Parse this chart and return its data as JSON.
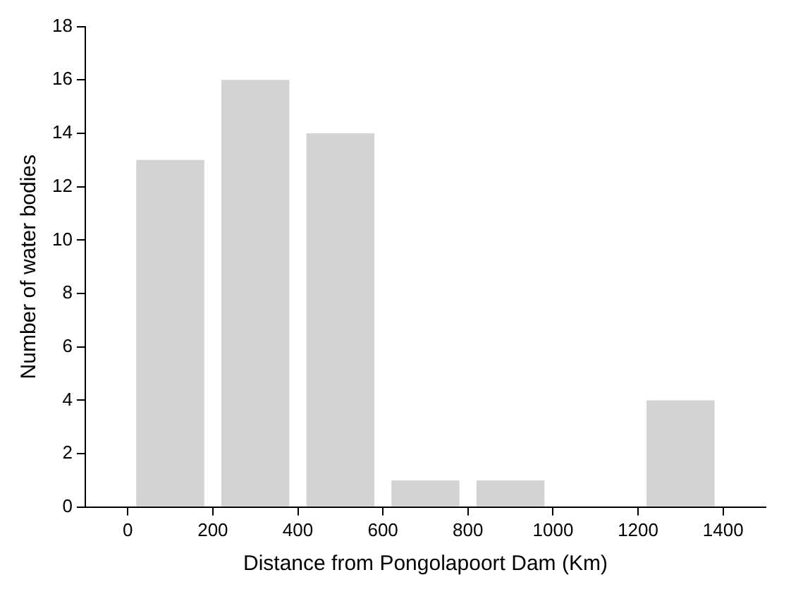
{
  "chart_data": {
    "type": "histogram",
    "xlabel": "Distance from Pongolapoort Dam (Km)",
    "ylabel": "Number of water bodies",
    "bins": [
      0,
      200,
      400,
      600,
      800,
      1000,
      1200,
      1400
    ],
    "values": [
      13,
      16,
      14,
      1,
      1,
      0,
      4
    ],
    "color": "#d3d3d3",
    "xlim": [
      -100,
      1500
    ],
    "xticks": [
      0,
      200,
      400,
      600,
      800,
      1000,
      1200,
      1400
    ],
    "ylim": [
      0,
      18
    ],
    "yticks": [
      0,
      2,
      4,
      6,
      8,
      10,
      12,
      14,
      16,
      18
    ],
    "grid": false,
    "legend": false
  }
}
